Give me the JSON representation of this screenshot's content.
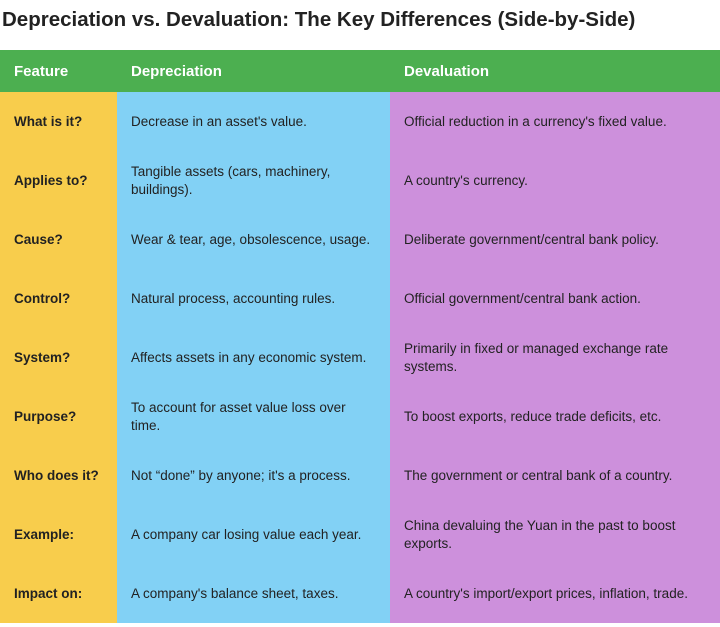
{
  "header": {
    "title": "Depreciation vs. Devaluation: The Key Differences (Side-by-Side)"
  },
  "table": {
    "columns": [
      "Feature",
      "Depreciation",
      "Devaluation"
    ],
    "rows": [
      [
        "What is it?",
        "Decrease in an asset's value.",
        "Official reduction in a currency's fixed value."
      ],
      [
        "Applies to?",
        "Tangible assets (cars, machinery, buildings).",
        "A country's currency."
      ],
      [
        "Cause?",
        "Wear & tear, age, obsolescence, usage.",
        "Deliberate government/central bank policy."
      ],
      [
        "Control?",
        "Natural process, accounting rules.",
        "Official government/central bank action."
      ],
      [
        "System?",
        "Affects assets in any economic system.",
        "Primarily in fixed or managed exchange rate systems."
      ],
      [
        "Purpose?",
        "To account for asset value loss over time.",
        "To boost exports, reduce trade deficits, etc."
      ],
      [
        "Who does it?",
        "Not “done” by anyone; it's a process.",
        "The government or central bank of a country."
      ],
      [
        "Example:",
        "A company car losing value each year.",
        "China devaluing the Yuan in the past to boost exports."
      ],
      [
        "Impact on:",
        "A company's balance sheet, taxes.",
        "A country's import/export prices, inflation, trade."
      ]
    ]
  }
}
